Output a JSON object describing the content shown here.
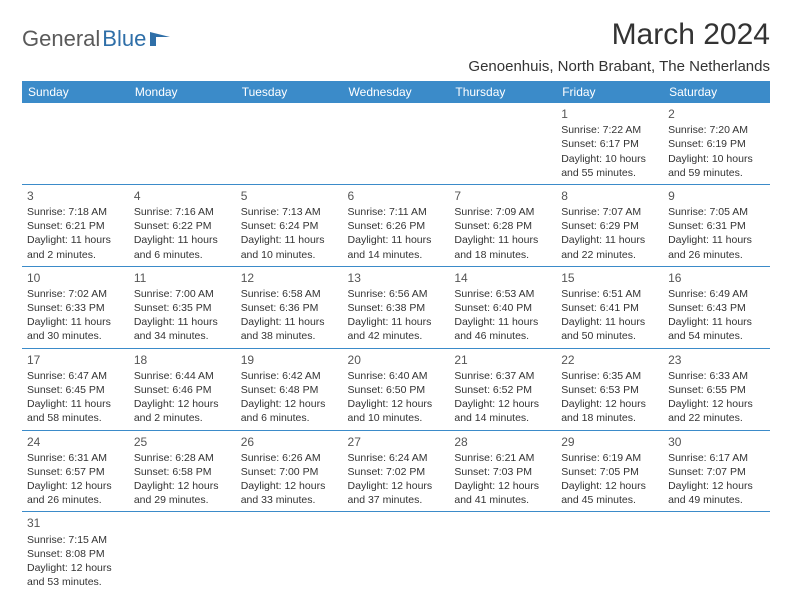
{
  "logo": {
    "general": "General",
    "blue": "Blue"
  },
  "title": "March 2024",
  "location": "Genoenhuis, North Brabant, The Netherlands",
  "colors": {
    "header_bg": "#3b8bc9",
    "header_text": "#ffffff",
    "border": "#3b8bc9",
    "text": "#333333",
    "logo_gray": "#5a5a5a",
    "logo_blue": "#2f6fa8"
  },
  "weekdays": [
    "Sunday",
    "Monday",
    "Tuesday",
    "Wednesday",
    "Thursday",
    "Friday",
    "Saturday"
  ],
  "weeks": [
    [
      null,
      null,
      null,
      null,
      null,
      {
        "d": "1",
        "sr": "Sunrise: 7:22 AM",
        "ss": "Sunset: 6:17 PM",
        "dl1": "Daylight: 10 hours",
        "dl2": "and 55 minutes."
      },
      {
        "d": "2",
        "sr": "Sunrise: 7:20 AM",
        "ss": "Sunset: 6:19 PM",
        "dl1": "Daylight: 10 hours",
        "dl2": "and 59 minutes."
      }
    ],
    [
      {
        "d": "3",
        "sr": "Sunrise: 7:18 AM",
        "ss": "Sunset: 6:21 PM",
        "dl1": "Daylight: 11 hours",
        "dl2": "and 2 minutes."
      },
      {
        "d": "4",
        "sr": "Sunrise: 7:16 AM",
        "ss": "Sunset: 6:22 PM",
        "dl1": "Daylight: 11 hours",
        "dl2": "and 6 minutes."
      },
      {
        "d": "5",
        "sr": "Sunrise: 7:13 AM",
        "ss": "Sunset: 6:24 PM",
        "dl1": "Daylight: 11 hours",
        "dl2": "and 10 minutes."
      },
      {
        "d": "6",
        "sr": "Sunrise: 7:11 AM",
        "ss": "Sunset: 6:26 PM",
        "dl1": "Daylight: 11 hours",
        "dl2": "and 14 minutes."
      },
      {
        "d": "7",
        "sr": "Sunrise: 7:09 AM",
        "ss": "Sunset: 6:28 PM",
        "dl1": "Daylight: 11 hours",
        "dl2": "and 18 minutes."
      },
      {
        "d": "8",
        "sr": "Sunrise: 7:07 AM",
        "ss": "Sunset: 6:29 PM",
        "dl1": "Daylight: 11 hours",
        "dl2": "and 22 minutes."
      },
      {
        "d": "9",
        "sr": "Sunrise: 7:05 AM",
        "ss": "Sunset: 6:31 PM",
        "dl1": "Daylight: 11 hours",
        "dl2": "and 26 minutes."
      }
    ],
    [
      {
        "d": "10",
        "sr": "Sunrise: 7:02 AM",
        "ss": "Sunset: 6:33 PM",
        "dl1": "Daylight: 11 hours",
        "dl2": "and 30 minutes."
      },
      {
        "d": "11",
        "sr": "Sunrise: 7:00 AM",
        "ss": "Sunset: 6:35 PM",
        "dl1": "Daylight: 11 hours",
        "dl2": "and 34 minutes."
      },
      {
        "d": "12",
        "sr": "Sunrise: 6:58 AM",
        "ss": "Sunset: 6:36 PM",
        "dl1": "Daylight: 11 hours",
        "dl2": "and 38 minutes."
      },
      {
        "d": "13",
        "sr": "Sunrise: 6:56 AM",
        "ss": "Sunset: 6:38 PM",
        "dl1": "Daylight: 11 hours",
        "dl2": "and 42 minutes."
      },
      {
        "d": "14",
        "sr": "Sunrise: 6:53 AM",
        "ss": "Sunset: 6:40 PM",
        "dl1": "Daylight: 11 hours",
        "dl2": "and 46 minutes."
      },
      {
        "d": "15",
        "sr": "Sunrise: 6:51 AM",
        "ss": "Sunset: 6:41 PM",
        "dl1": "Daylight: 11 hours",
        "dl2": "and 50 minutes."
      },
      {
        "d": "16",
        "sr": "Sunrise: 6:49 AM",
        "ss": "Sunset: 6:43 PM",
        "dl1": "Daylight: 11 hours",
        "dl2": "and 54 minutes."
      }
    ],
    [
      {
        "d": "17",
        "sr": "Sunrise: 6:47 AM",
        "ss": "Sunset: 6:45 PM",
        "dl1": "Daylight: 11 hours",
        "dl2": "and 58 minutes."
      },
      {
        "d": "18",
        "sr": "Sunrise: 6:44 AM",
        "ss": "Sunset: 6:46 PM",
        "dl1": "Daylight: 12 hours",
        "dl2": "and 2 minutes."
      },
      {
        "d": "19",
        "sr": "Sunrise: 6:42 AM",
        "ss": "Sunset: 6:48 PM",
        "dl1": "Daylight: 12 hours",
        "dl2": "and 6 minutes."
      },
      {
        "d": "20",
        "sr": "Sunrise: 6:40 AM",
        "ss": "Sunset: 6:50 PM",
        "dl1": "Daylight: 12 hours",
        "dl2": "and 10 minutes."
      },
      {
        "d": "21",
        "sr": "Sunrise: 6:37 AM",
        "ss": "Sunset: 6:52 PM",
        "dl1": "Daylight: 12 hours",
        "dl2": "and 14 minutes."
      },
      {
        "d": "22",
        "sr": "Sunrise: 6:35 AM",
        "ss": "Sunset: 6:53 PM",
        "dl1": "Daylight: 12 hours",
        "dl2": "and 18 minutes."
      },
      {
        "d": "23",
        "sr": "Sunrise: 6:33 AM",
        "ss": "Sunset: 6:55 PM",
        "dl1": "Daylight: 12 hours",
        "dl2": "and 22 minutes."
      }
    ],
    [
      {
        "d": "24",
        "sr": "Sunrise: 6:31 AM",
        "ss": "Sunset: 6:57 PM",
        "dl1": "Daylight: 12 hours",
        "dl2": "and 26 minutes."
      },
      {
        "d": "25",
        "sr": "Sunrise: 6:28 AM",
        "ss": "Sunset: 6:58 PM",
        "dl1": "Daylight: 12 hours",
        "dl2": "and 29 minutes."
      },
      {
        "d": "26",
        "sr": "Sunrise: 6:26 AM",
        "ss": "Sunset: 7:00 PM",
        "dl1": "Daylight: 12 hours",
        "dl2": "and 33 minutes."
      },
      {
        "d": "27",
        "sr": "Sunrise: 6:24 AM",
        "ss": "Sunset: 7:02 PM",
        "dl1": "Daylight: 12 hours",
        "dl2": "and 37 minutes."
      },
      {
        "d": "28",
        "sr": "Sunrise: 6:21 AM",
        "ss": "Sunset: 7:03 PM",
        "dl1": "Daylight: 12 hours",
        "dl2": "and 41 minutes."
      },
      {
        "d": "29",
        "sr": "Sunrise: 6:19 AM",
        "ss": "Sunset: 7:05 PM",
        "dl1": "Daylight: 12 hours",
        "dl2": "and 45 minutes."
      },
      {
        "d": "30",
        "sr": "Sunrise: 6:17 AM",
        "ss": "Sunset: 7:07 PM",
        "dl1": "Daylight: 12 hours",
        "dl2": "and 49 minutes."
      }
    ],
    [
      {
        "d": "31",
        "sr": "Sunrise: 7:15 AM",
        "ss": "Sunset: 8:08 PM",
        "dl1": "Daylight: 12 hours",
        "dl2": "and 53 minutes."
      },
      null,
      null,
      null,
      null,
      null,
      null
    ]
  ]
}
